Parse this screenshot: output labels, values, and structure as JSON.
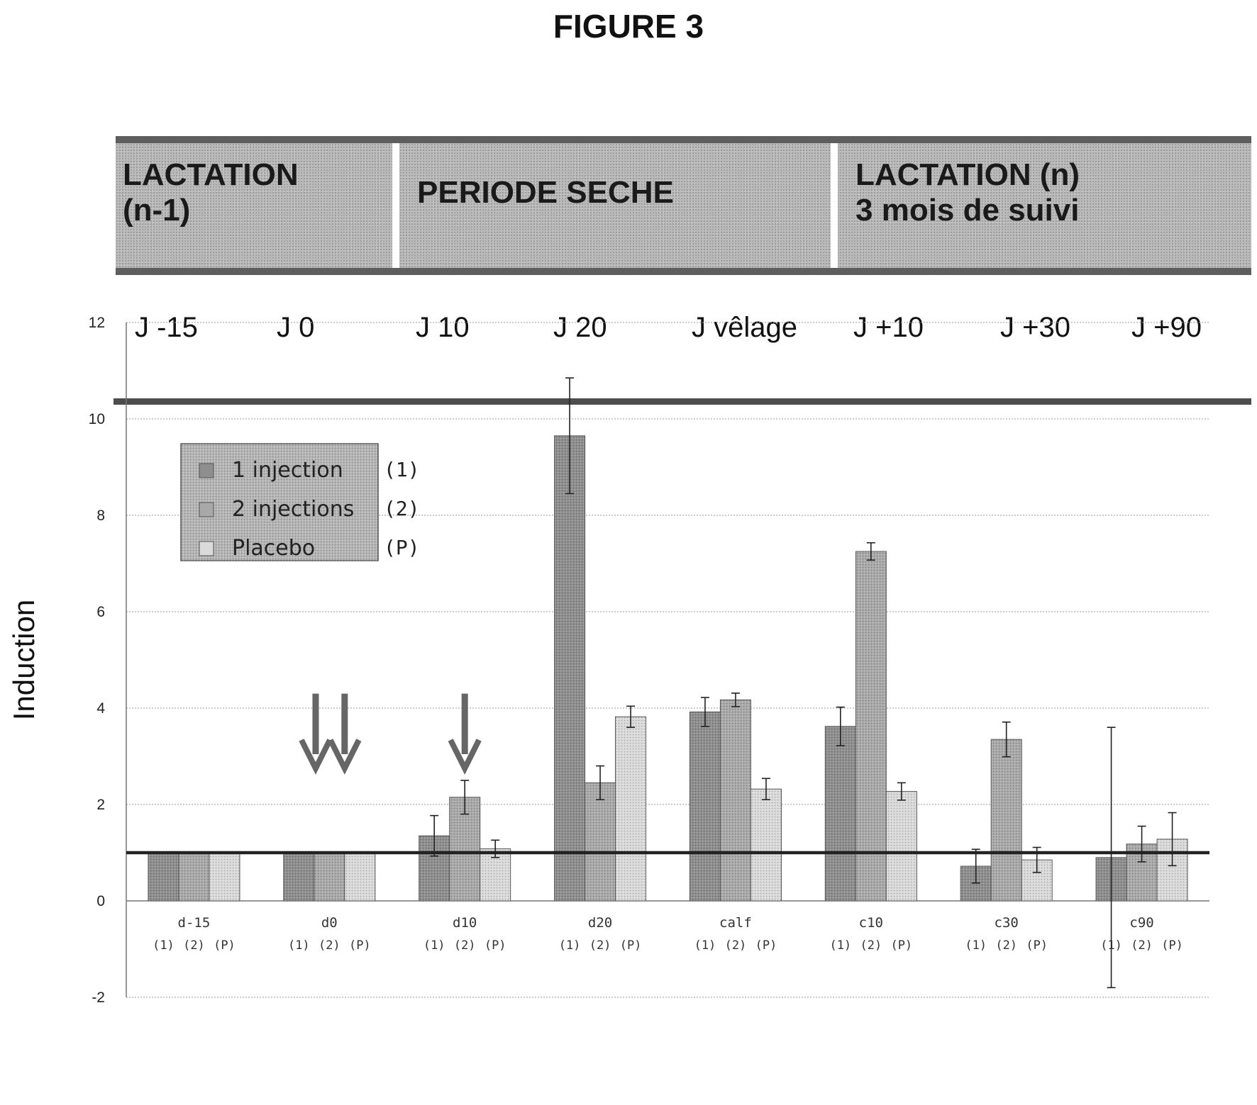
{
  "figure_title": "FIGURE 3",
  "timeline": {
    "periods": [
      {
        "line1": "LACTATION",
        "line2": "(n-1)"
      },
      {
        "line1": "PERIODE SECHE",
        "line2": ""
      },
      {
        "line1": "LACTATION (n)",
        "line2": "3 mois de suivi"
      }
    ],
    "days": [
      "J -15",
      "J 0",
      "J 10",
      "J 20",
      "J vêlage",
      "J +10",
      "J +30",
      "J +90"
    ]
  },
  "colors": {
    "one_injection": "#8e8e8e",
    "two_injections": "#a9a9a9",
    "placebo": "#dadada",
    "reference_line": "#222222",
    "arrow": "#666666"
  },
  "chart_data": {
    "type": "bar",
    "title": "",
    "xlabel": "",
    "ylabel": "Induction",
    "ylim": [
      -2,
      12
    ],
    "yticks": [
      -2,
      0,
      2,
      4,
      6,
      8,
      10,
      12
    ],
    "grid": true,
    "legend_position": "top-left",
    "categories": [
      "d-15",
      "d0",
      "d10",
      "d20",
      "calf",
      "c10",
      "c30",
      "c90"
    ],
    "bar_sublabels": [
      "(1)",
      "(2)",
      "(P)"
    ],
    "reference_line_value": 1,
    "series": [
      {
        "name": "1 injection",
        "tag": "(1)",
        "values": [
          1,
          1,
          1.35,
          9.65,
          3.92,
          3.62,
          0.72,
          0.9
        ],
        "errors": [
          0,
          0,
          0.42,
          1.2,
          0.3,
          0.4,
          0.35,
          2.7
        ]
      },
      {
        "name": "2 injections",
        "tag": "(2)",
        "values": [
          1,
          1,
          2.15,
          2.45,
          4.17,
          7.25,
          3.35,
          1.18
        ],
        "errors": [
          0,
          0,
          0.35,
          0.35,
          0.14,
          0.18,
          0.36,
          0.37
        ]
      },
      {
        "name": "Placebo",
        "tag": "(P)",
        "values": [
          1,
          1,
          1.08,
          3.82,
          2.32,
          2.27,
          0.85,
          1.28
        ],
        "errors": [
          0,
          0,
          0.18,
          0.22,
          0.22,
          0.18,
          0.26,
          0.55
        ]
      }
    ],
    "injection_arrows": [
      {
        "category": "d0",
        "count": 2
      },
      {
        "category": "d10",
        "count": 1
      }
    ]
  }
}
